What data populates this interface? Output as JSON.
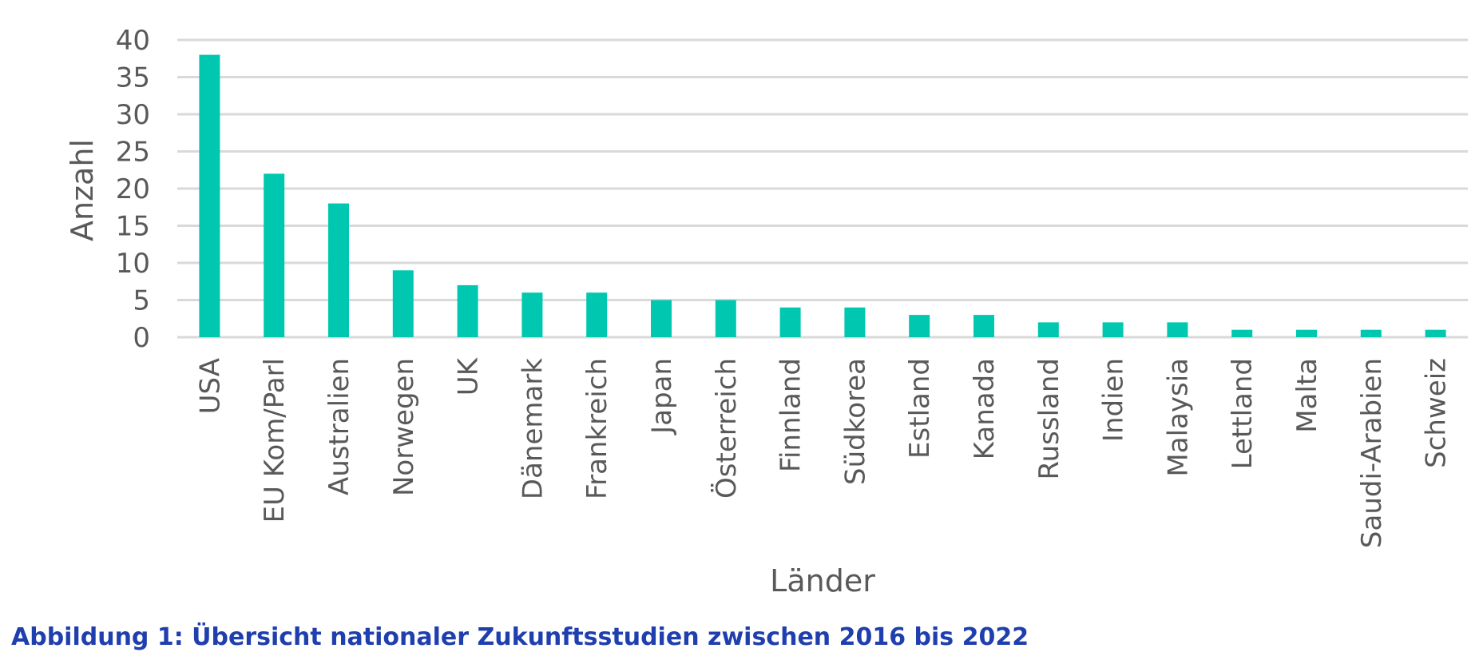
{
  "chart_data": {
    "type": "bar",
    "categories": [
      "USA",
      "EU Kom/Parl",
      "Australien",
      "Norwegen",
      "UK",
      "Dänemark",
      "Frankreich",
      "Japan",
      "Österreich",
      "Finnland",
      "Südkorea",
      "Estland",
      "Kanada",
      "Russland",
      "Indien",
      "Malaysia",
      "Lettland",
      "Malta",
      "Saudi-Arabien",
      "Schweiz"
    ],
    "values": [
      38,
      22,
      18,
      9,
      7,
      6,
      6,
      5,
      5,
      4,
      4,
      3,
      3,
      2,
      2,
      2,
      1,
      1,
      1,
      1
    ],
    "title": "",
    "xlabel": "Länder",
    "ylabel": "Anzahl",
    "ylim": [
      0,
      40
    ],
    "yticks": [
      0,
      5,
      10,
      15,
      20,
      25,
      30,
      35,
      40
    ],
    "grid": true,
    "bar_color": "#00C8B0",
    "grid_color": "#D9D9D9",
    "text_color": "#595959"
  },
  "caption": {
    "text": "Abbildung 1: Übersicht nationaler Zukunftsstudien zwischen 2016 bis 2022",
    "color": "#1F3FAE"
  }
}
